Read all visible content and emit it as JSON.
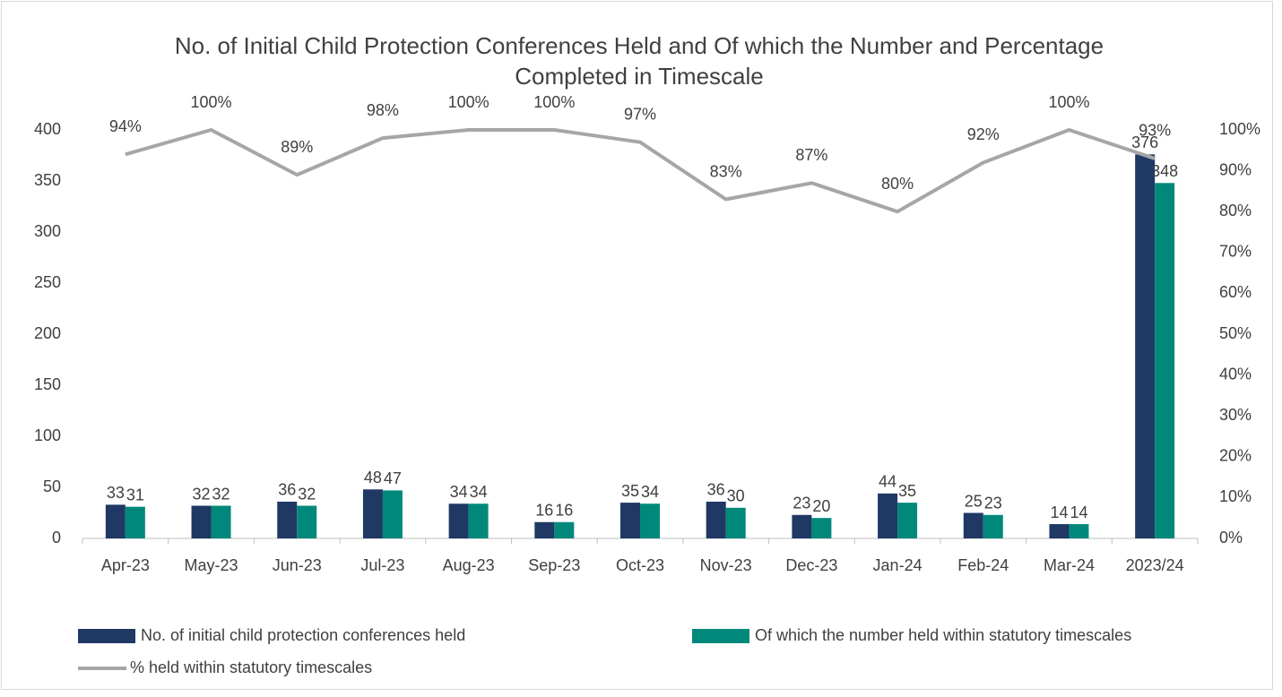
{
  "chart_data": {
    "type": "bar-line",
    "title": "No. of Initial Child Protection Conferences Held and Of which the Number and Percentage Completed in Timescale",
    "categories": [
      "Apr-23",
      "May-23",
      "Jun-23",
      "Jul-23",
      "Aug-23",
      "Sep-23",
      "Oct-23",
      "Nov-23",
      "Dec-23",
      "Jan-24",
      "Feb-24",
      "Mar-24",
      "2023/24"
    ],
    "series": [
      {
        "name": "No. of initial child protection conferences held",
        "type": "bar",
        "color": "#1f3864",
        "values": [
          33,
          32,
          36,
          48,
          34,
          16,
          35,
          36,
          23,
          44,
          25,
          14,
          376
        ]
      },
      {
        "name": "Of which the number held within statutory timescales",
        "type": "bar",
        "color": "#00897b",
        "values": [
          31,
          32,
          32,
          47,
          34,
          16,
          34,
          30,
          20,
          35,
          23,
          14,
          348
        ]
      },
      {
        "name": "%  held within statutory timescales",
        "type": "line",
        "axis": "y2",
        "color": "#a6a6a6",
        "values": [
          94,
          100,
          89,
          98,
          100,
          100,
          97,
          83,
          87,
          80,
          92,
          100,
          93
        ],
        "value_labels": [
          "94%",
          "100%",
          "89%",
          "98%",
          "100%",
          "100%",
          "97%",
          "83%",
          "87%",
          "80%",
          "92%",
          "100%",
          "93%"
        ]
      }
    ],
    "ylim": [
      0,
      400
    ],
    "yticks": [
      0,
      50,
      100,
      150,
      200,
      250,
      300,
      350,
      400
    ],
    "y2lim": [
      0,
      100
    ],
    "y2ticks": [
      {
        "value": 0,
        "label": "0%"
      },
      {
        "value": 10,
        "label": "10%"
      },
      {
        "value": 20,
        "label": "20%"
      },
      {
        "value": 30,
        "label": "30%"
      },
      {
        "value": 40,
        "label": "40%"
      },
      {
        "value": 50,
        "label": "50%"
      },
      {
        "value": 60,
        "label": "60%"
      },
      {
        "value": 70,
        "label": "70%"
      },
      {
        "value": 80,
        "label": "80%"
      },
      {
        "value": 90,
        "label": "90%"
      },
      {
        "value": 100,
        "label": "100%"
      }
    ],
    "grid": false,
    "legend": "bottom"
  }
}
